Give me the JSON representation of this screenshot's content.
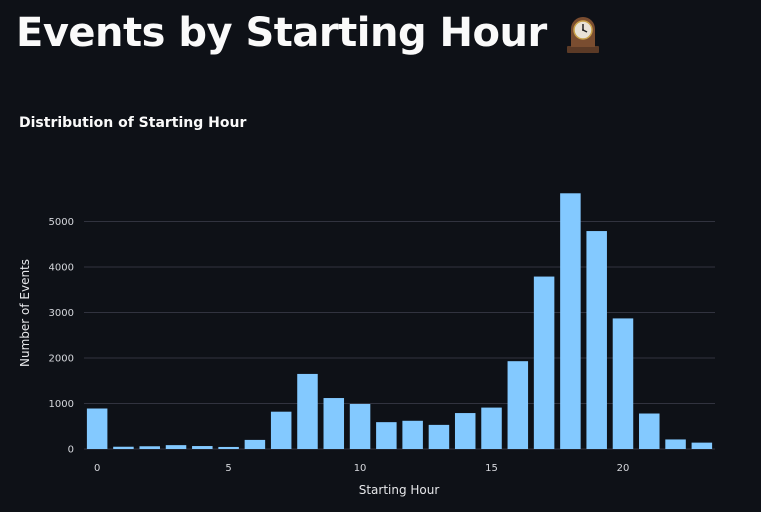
{
  "page": {
    "title": "Events by Starting Hour",
    "title_icon": "mantelpiece-clock-icon"
  },
  "chart_data": {
    "type": "bar",
    "title": "Distribution of Starting Hour",
    "xlabel": "Starting Hour",
    "ylabel": "Number of Events",
    "categories": [
      0,
      1,
      2,
      3,
      4,
      5,
      6,
      7,
      8,
      9,
      10,
      11,
      12,
      13,
      14,
      15,
      16,
      17,
      18,
      19,
      20,
      21,
      22,
      23
    ],
    "values": [
      890,
      50,
      60,
      85,
      65,
      45,
      200,
      820,
      1650,
      1120,
      990,
      590,
      620,
      530,
      790,
      910,
      1930,
      3790,
      5620,
      4790,
      2870,
      780,
      210,
      140
    ],
    "xlim": [
      -0.5,
      23.5
    ],
    "ylim": [
      0,
      6000
    ],
    "xticks": [
      0,
      5,
      10,
      15,
      20
    ],
    "yticks": [
      0,
      1000,
      2000,
      3000,
      4000,
      5000
    ],
    "grid": true,
    "bar_color": "#83c9ff",
    "grid_color": "#31333f",
    "background": "#0e1117"
  }
}
